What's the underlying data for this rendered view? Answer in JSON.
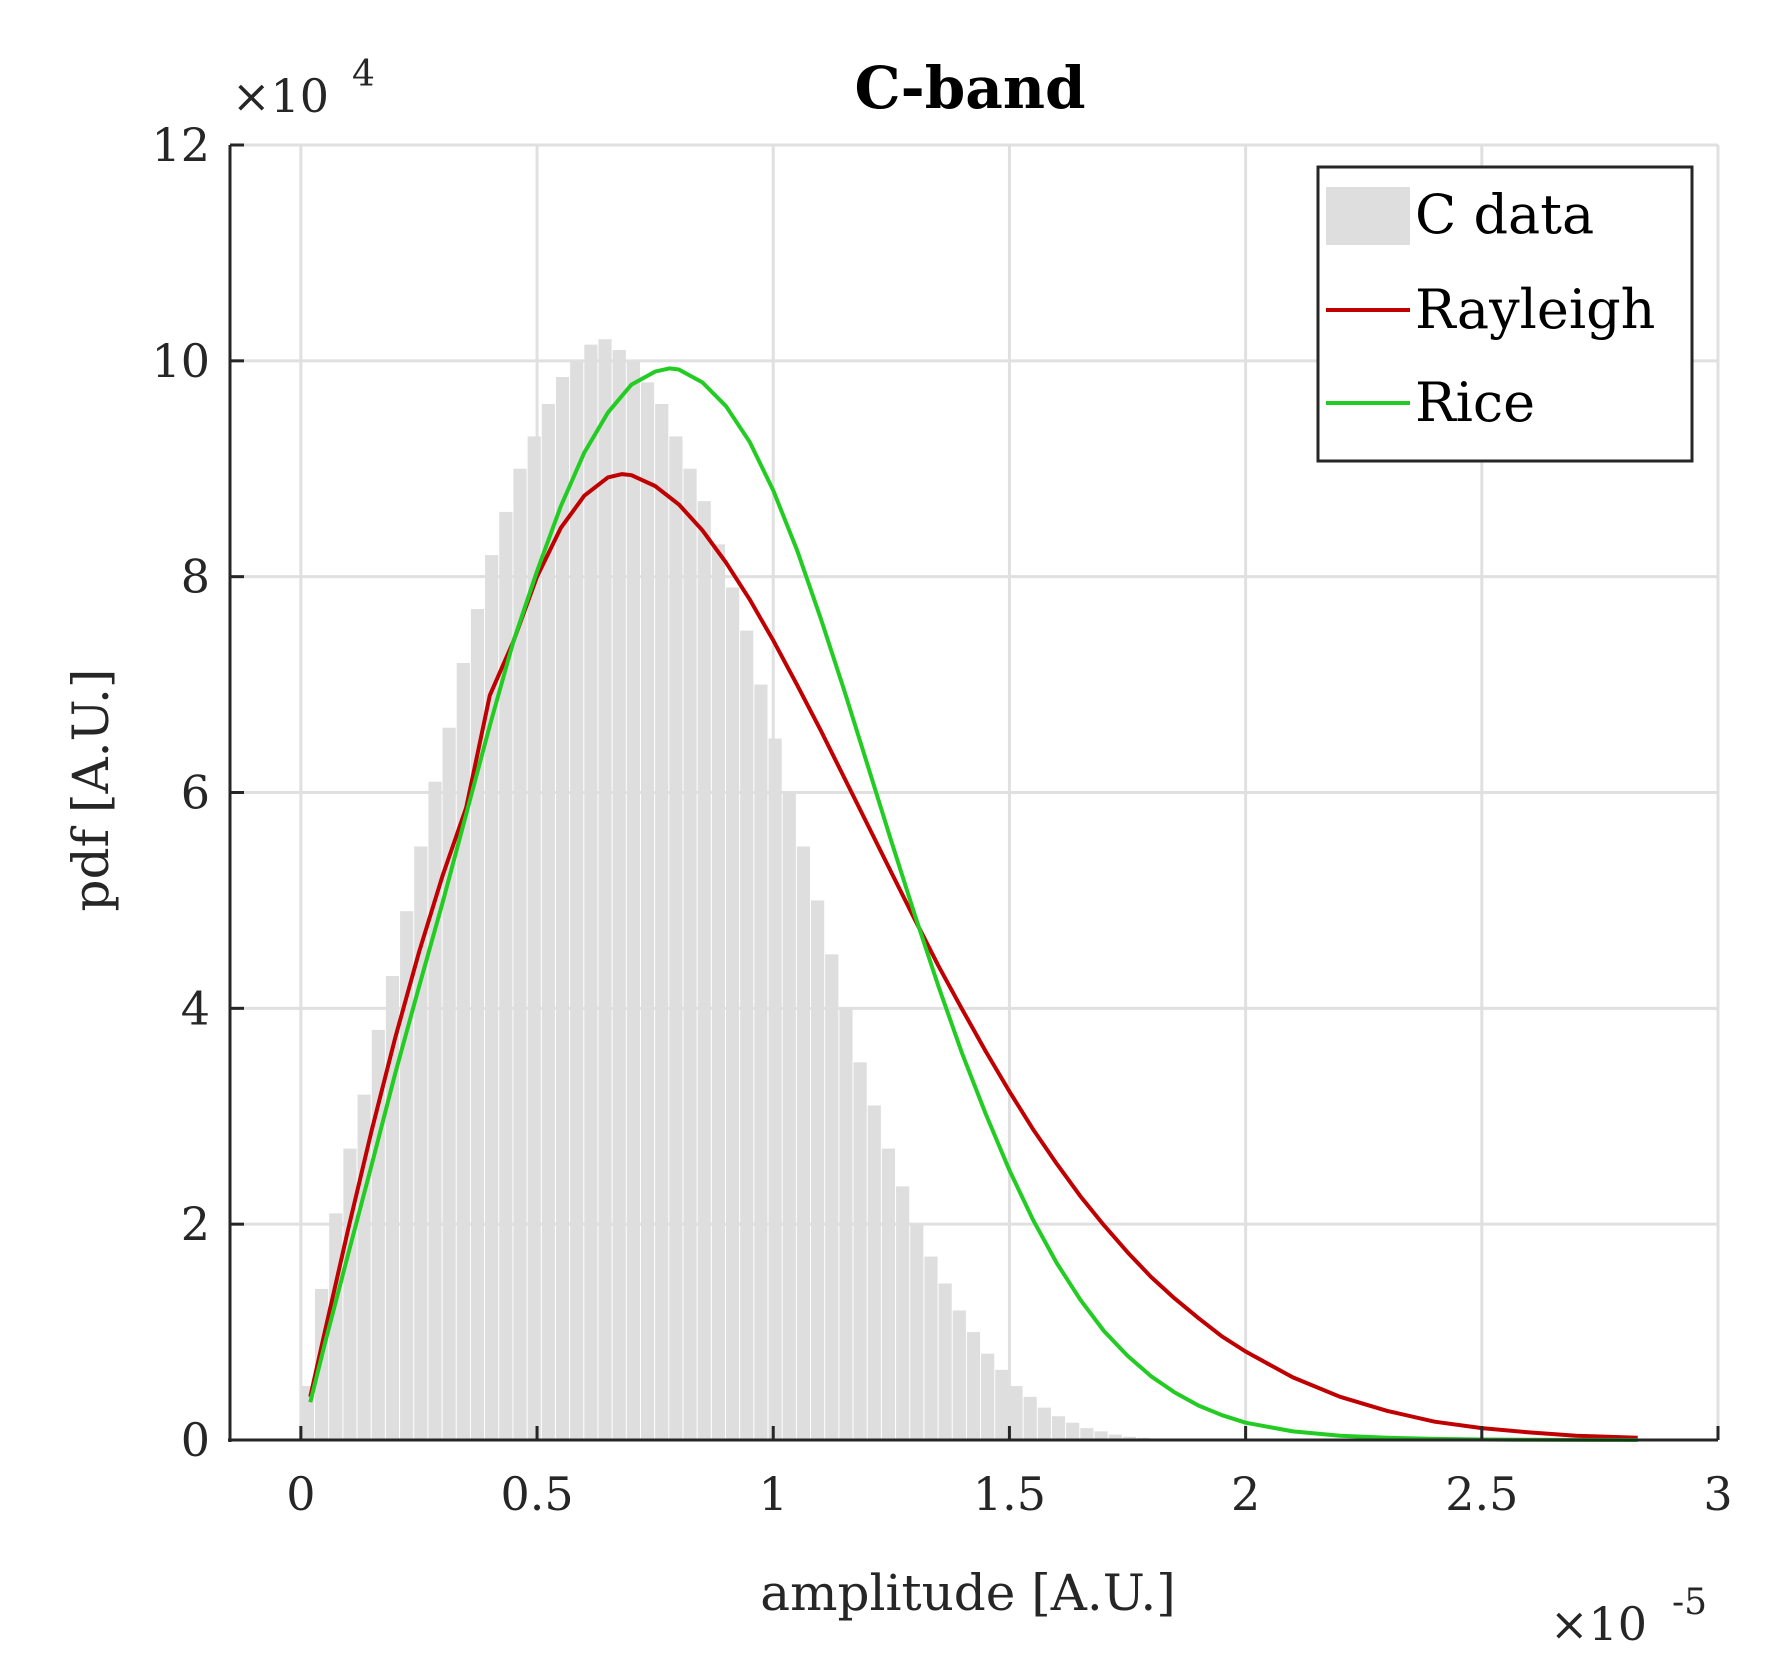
{
  "chart_data": {
    "type": "bar",
    "title": "C-band",
    "xlabel": "amplitude [A.U.]",
    "ylabel": "pdf [A.U.]",
    "x_multiplier": {
      "base": "×10",
      "exponent": "-5"
    },
    "y_multiplier": {
      "base": "×10",
      "exponent": "4"
    },
    "xlim": [
      -0.15,
      3
    ],
    "ylim": [
      0,
      12
    ],
    "grid": true,
    "x_ticks": [
      0,
      0.5,
      1,
      1.5,
      2,
      2.5,
      3
    ],
    "x_tick_labels": [
      "0",
      "0.5",
      "1",
      "1.5",
      "2",
      "2.5",
      "3"
    ],
    "y_ticks": [
      0,
      2,
      4,
      6,
      8,
      10,
      12
    ],
    "y_tick_labels": [
      "0",
      "2",
      "4",
      "6",
      "8",
      "10",
      "12"
    ],
    "histogram": {
      "name": "C data",
      "color": "#dedede",
      "bin_start": 0.0,
      "bin_width": 0.03,
      "values": [
        0.5,
        1.4,
        2.1,
        2.7,
        3.2,
        3.8,
        4.3,
        4.9,
        5.5,
        6.1,
        6.6,
        7.2,
        7.7,
        8.2,
        8.6,
        9.0,
        9.3,
        9.6,
        9.85,
        10.0,
        10.15,
        10.2,
        10.1,
        10.0,
        9.8,
        9.6,
        9.3,
        9.0,
        8.7,
        8.3,
        7.9,
        7.5,
        7.0,
        6.5,
        6.0,
        5.5,
        5.0,
        4.5,
        4.0,
        3.5,
        3.1,
        2.7,
        2.35,
        2.0,
        1.7,
        1.45,
        1.2,
        1.0,
        0.8,
        0.65,
        0.5,
        0.4,
        0.3,
        0.22,
        0.16,
        0.11,
        0.08,
        0.05,
        0.03,
        0.02,
        0.01,
        0.005
      ]
    },
    "series": [
      {
        "name": "Rayleigh",
        "color": "#c00000",
        "x": [
          0.02,
          0.05,
          0.1,
          0.15,
          0.2,
          0.25,
          0.3,
          0.35,
          0.4,
          0.45,
          0.5,
          0.55,
          0.6,
          0.65,
          0.68,
          0.7,
          0.75,
          0.8,
          0.85,
          0.9,
          0.95,
          1.0,
          1.05,
          1.1,
          1.15,
          1.2,
          1.25,
          1.3,
          1.35,
          1.4,
          1.45,
          1.5,
          1.55,
          1.6,
          1.65,
          1.7,
          1.75,
          1.8,
          1.85,
          1.9,
          1.95,
          2.0,
          2.1,
          2.2,
          2.3,
          2.4,
          2.5,
          2.6,
          2.7,
          2.83
        ],
        "y": [
          0.4,
          0.99,
          1.95,
          2.87,
          3.73,
          4.52,
          5.23,
          5.86,
          6.9,
          7.4,
          8.0,
          8.45,
          8.75,
          8.92,
          8.95,
          8.94,
          8.84,
          8.67,
          8.43,
          8.13,
          7.79,
          7.41,
          7.0,
          6.58,
          6.14,
          5.7,
          5.26,
          4.82,
          4.39,
          3.99,
          3.6,
          3.23,
          2.88,
          2.56,
          2.26,
          1.99,
          1.74,
          1.51,
          1.31,
          1.13,
          0.96,
          0.82,
          0.58,
          0.4,
          0.27,
          0.17,
          0.11,
          0.07,
          0.04,
          0.02
        ]
      },
      {
        "name": "Rice",
        "color": "#22cc22",
        "x": [
          0.02,
          0.05,
          0.1,
          0.15,
          0.2,
          0.25,
          0.3,
          0.35,
          0.4,
          0.45,
          0.5,
          0.55,
          0.6,
          0.65,
          0.7,
          0.75,
          0.78,
          0.8,
          0.85,
          0.9,
          0.95,
          1.0,
          1.05,
          1.1,
          1.15,
          1.2,
          1.25,
          1.3,
          1.35,
          1.4,
          1.45,
          1.5,
          1.55,
          1.6,
          1.65,
          1.7,
          1.75,
          1.8,
          1.85,
          1.9,
          1.95,
          2.0,
          2.1,
          2.2,
          2.3,
          2.4,
          2.5,
          2.6,
          2.7,
          2.83
        ],
        "y": [
          0.35,
          0.88,
          1.72,
          2.55,
          3.4,
          4.2,
          4.98,
          5.8,
          6.62,
          7.4,
          8.05,
          8.65,
          9.15,
          9.52,
          9.78,
          9.9,
          9.93,
          9.92,
          9.8,
          9.58,
          9.25,
          8.8,
          8.25,
          7.62,
          6.95,
          6.25,
          5.55,
          4.86,
          4.2,
          3.58,
          3.02,
          2.5,
          2.04,
          1.64,
          1.3,
          1.01,
          0.78,
          0.59,
          0.44,
          0.32,
          0.23,
          0.16,
          0.08,
          0.04,
          0.02,
          0.01,
          0.005,
          0.002,
          0.001,
          0.0
        ]
      }
    ],
    "legend": {
      "position": "top-right",
      "entries": [
        "C data",
        "Rayleigh",
        "Rice"
      ]
    }
  }
}
